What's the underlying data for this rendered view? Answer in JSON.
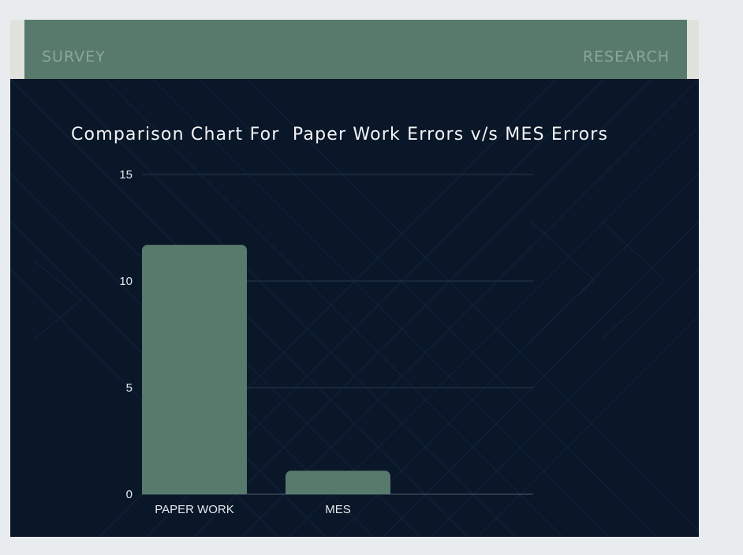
{
  "header": {
    "left_label": "SURVEY",
    "right_label": "RESEARCH"
  },
  "colors": {
    "background": "#0a1729",
    "accent": "#587a6d",
    "header_text": "#8aa79b",
    "text": "#f2f4f5"
  },
  "chart_data": {
    "type": "bar",
    "title": "Comparison Chart For  Paper Work Errors v/s MES Errors",
    "categories": [
      "PAPER WORK",
      "MES"
    ],
    "values": [
      11.7,
      1.1
    ],
    "xlabel": "",
    "ylabel": "",
    "ylim": [
      0,
      15
    ],
    "yticks": [
      "0",
      "5",
      "10",
      "15"
    ],
    "grid": true,
    "legend": "none"
  }
}
